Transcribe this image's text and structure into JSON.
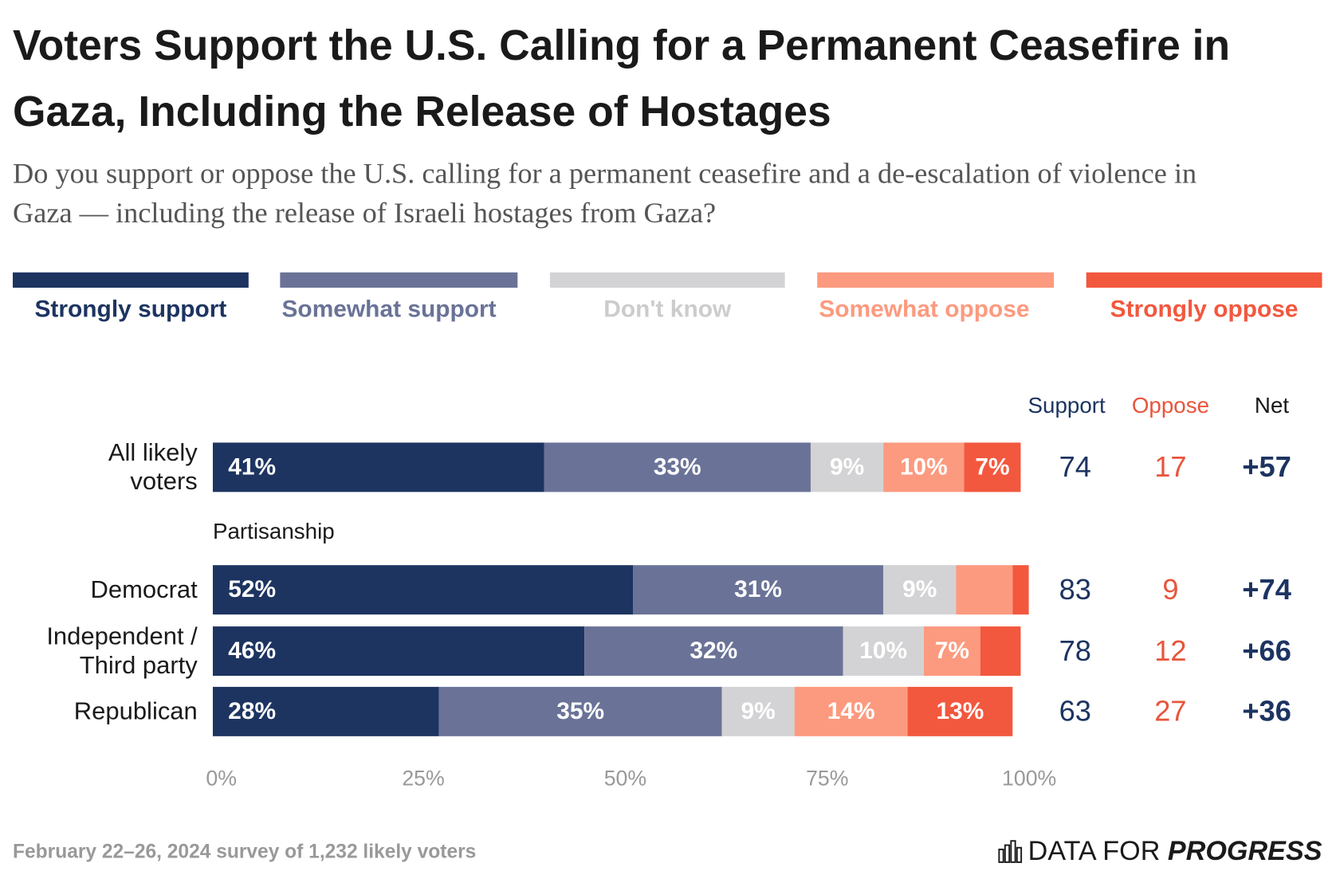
{
  "chart_data": {
    "type": "bar",
    "orientation": "horizontal",
    "stacked": true,
    "title": "Voters Support the U.S. Calling for a Permanent Ceasefire in Gaza, Including the Release of Hostages",
    "subtitle": "Do you support or oppose the U.S. calling for a permanent ceasefire and a de-escalation of violence in Gaza — including the release of Israeli hostages from Gaza?",
    "categories": [
      "All likely voters",
      "Democrat",
      "Independent / Third party",
      "Republican"
    ],
    "group_label": "Partisanship",
    "series": [
      {
        "name": "Strongly support",
        "color": "#1d3461",
        "text_color": "#1d3461",
        "values": [
          41,
          52,
          46,
          28
        ],
        "value_labels": [
          "41%",
          "52%",
          "46%",
          "28%"
        ]
      },
      {
        "name": "Somewhat support",
        "color": "#6a7397",
        "text_color": "#6a7397",
        "values": [
          33,
          31,
          32,
          35
        ],
        "value_labels": [
          "33%",
          "31%",
          "32%",
          "35%"
        ]
      },
      {
        "name": "Don't know",
        "color": "#d3d3d5",
        "text_color": "#cccccc",
        "values": [
          9,
          9,
          10,
          9
        ],
        "value_labels": [
          "9%",
          "9%",
          "10%",
          "9%"
        ]
      },
      {
        "name": "Somewhat oppose",
        "color": "#fc9a7f",
        "text_color": "#fc9a7f",
        "values": [
          10,
          7,
          7,
          14
        ],
        "value_labels": [
          "10%",
          null,
          "7%",
          "14%"
        ]
      },
      {
        "name": "Strongly oppose",
        "color": "#f2583e",
        "text_color": "#f2583e",
        "values": [
          7,
          2,
          5,
          13
        ],
        "value_labels": [
          "7%",
          null,
          null,
          "13%"
        ]
      }
    ],
    "xlim": [
      0,
      100
    ],
    "xticks": [
      {
        "value": 0,
        "label": "0%"
      },
      {
        "value": 25,
        "label": "25%"
      },
      {
        "value": 50,
        "label": "50%"
      },
      {
        "value": 75,
        "label": "75%"
      },
      {
        "value": 100,
        "label": "100%"
      }
    ],
    "summary": {
      "headers": [
        "Support",
        "Oppose",
        "Net"
      ],
      "header_colors": [
        "#1d3461",
        "#e8553c",
        "#1a1a1a"
      ],
      "support": [
        74,
        83,
        78,
        63
      ],
      "oppose": [
        17,
        9,
        12,
        27
      ],
      "net": [
        57,
        74,
        66,
        36
      ],
      "net_labels": [
        "+57",
        "+74",
        "+66",
        "+36"
      ]
    },
    "note": "February 22–26, 2024 survey of 1,232 likely voters",
    "logo": [
      "DATA FOR",
      "PROGRESS"
    ]
  }
}
